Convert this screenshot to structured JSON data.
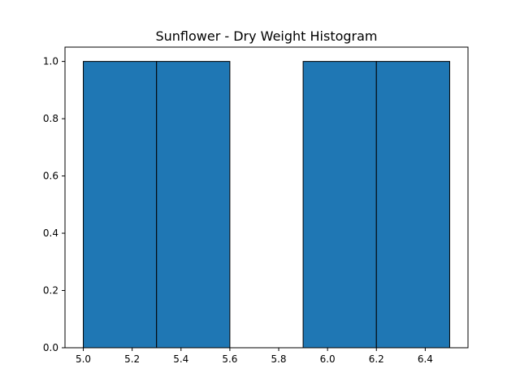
{
  "chart_data": {
    "type": "bar",
    "title": "Sunflower - Dry Weight Histogram",
    "xlabel": "",
    "ylabel": "",
    "bins": [
      {
        "x0": 5.0,
        "x1": 5.3,
        "count": 1
      },
      {
        "x0": 5.3,
        "x1": 5.6,
        "count": 1
      },
      {
        "x0": 5.6,
        "x1": 5.9,
        "count": 0
      },
      {
        "x0": 5.9,
        "x1": 6.2,
        "count": 1
      },
      {
        "x0": 6.2,
        "x1": 6.5,
        "count": 1
      }
    ],
    "xlim": [
      4.925,
      6.575
    ],
    "ylim": [
      0,
      1.05
    ],
    "xticks": [
      "5.0",
      "5.2",
      "5.4",
      "5.6",
      "5.8",
      "6.0",
      "6.2",
      "6.4"
    ],
    "yticks": [
      "0.0",
      "0.2",
      "0.4",
      "0.6",
      "0.8",
      "1.0"
    ],
    "grid": false,
    "colors": {
      "bar_fill": "#1f77b4",
      "bar_edge": "#000000"
    }
  }
}
